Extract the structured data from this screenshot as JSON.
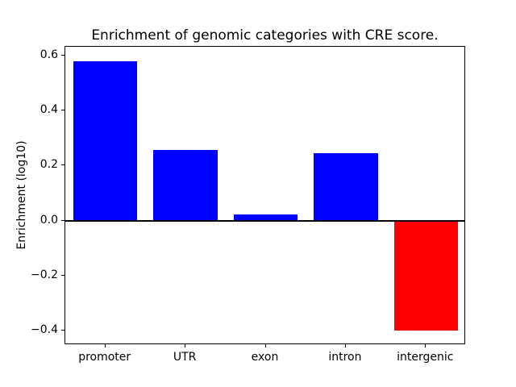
{
  "chart_data": {
    "type": "bar",
    "title": "Enrichment of genomic categories with CRE score.",
    "xlabel": "",
    "ylabel": "Enrichment (log10)",
    "categories": [
      "promoter",
      "UTR",
      "exon",
      "intron",
      "intergenic"
    ],
    "values": [
      0.578,
      0.257,
      0.022,
      0.246,
      -0.4
    ],
    "bar_colors": [
      "#0000ff",
      "#0000ff",
      "#0000ff",
      "#0000ff",
      "#ff0000"
    ],
    "positive_color": "#0000ff",
    "negative_color": "#ff0000",
    "ylim": [
      -0.453,
      0.632
    ],
    "yticks": [
      -0.4,
      -0.2,
      0.0,
      0.2,
      0.4,
      0.6
    ],
    "ytick_labels": [
      "−0.4",
      "−0.2",
      "0.0",
      "0.2",
      "0.4",
      "0.6"
    ],
    "bar_width_fraction": 0.8,
    "grid": false,
    "legend": "none",
    "zero_line": true
  }
}
